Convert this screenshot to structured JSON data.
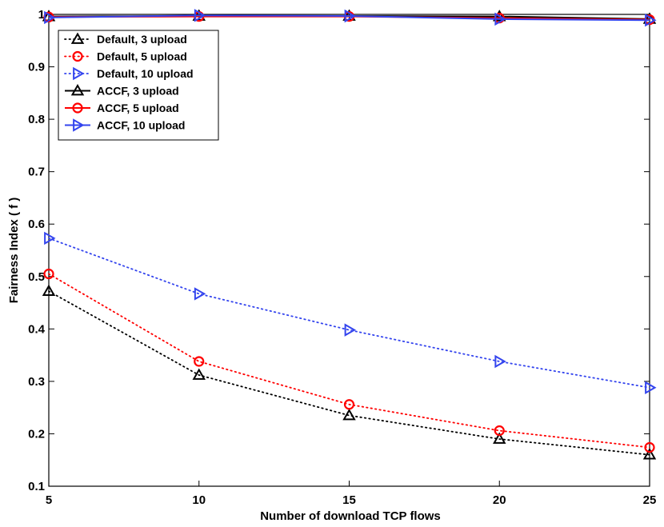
{
  "chart_data": {
    "type": "line",
    "title": "",
    "xlabel": "Number of download TCP flows",
    "ylabel": "Fairness Index ( f )",
    "x": [
      5,
      10,
      15,
      20,
      25
    ],
    "xlim": [
      5,
      25
    ],
    "ylim": [
      0.1,
      1
    ],
    "xticks": [
      "5",
      "10",
      "15",
      "20",
      "25"
    ],
    "yticks": [
      "0.1",
      "0.2",
      "0.3",
      "0.4",
      "0.5",
      "0.6",
      "0.7",
      "0.8",
      "0.9",
      "1"
    ],
    "grid": false,
    "legend_position": "top-left",
    "series": [
      {
        "name": "Default, 3 upload",
        "values": [
          0.472,
          0.312,
          0.235,
          0.19,
          0.16
        ],
        "color": "#000000",
        "marker": "triangle-up",
        "line": "dotted"
      },
      {
        "name": "Default, 5 upload",
        "values": [
          0.505,
          0.338,
          0.256,
          0.206,
          0.174
        ],
        "color": "#ff0000",
        "marker": "circle",
        "line": "dotted"
      },
      {
        "name": "Default, 10 upload",
        "values": [
          0.573,
          0.467,
          0.398,
          0.338,
          0.288
        ],
        "color": "#3344ee",
        "marker": "triangle-right",
        "line": "dotted"
      },
      {
        "name": "ACCF, 3 upload",
        "values": [
          0.996,
          0.997,
          0.997,
          0.996,
          0.991
        ],
        "color": "#000000",
        "marker": "triangle-up",
        "line": "solid"
      },
      {
        "name": "ACCF, 5 upload",
        "values": [
          0.995,
          0.996,
          0.996,
          0.993,
          0.99
        ],
        "color": "#ff0000",
        "marker": "circle",
        "line": "solid"
      },
      {
        "name": "ACCF, 10 upload",
        "values": [
          0.994,
          0.998,
          0.997,
          0.991,
          0.989
        ],
        "color": "#3344ee",
        "marker": "triangle-right",
        "line": "solid"
      }
    ]
  }
}
